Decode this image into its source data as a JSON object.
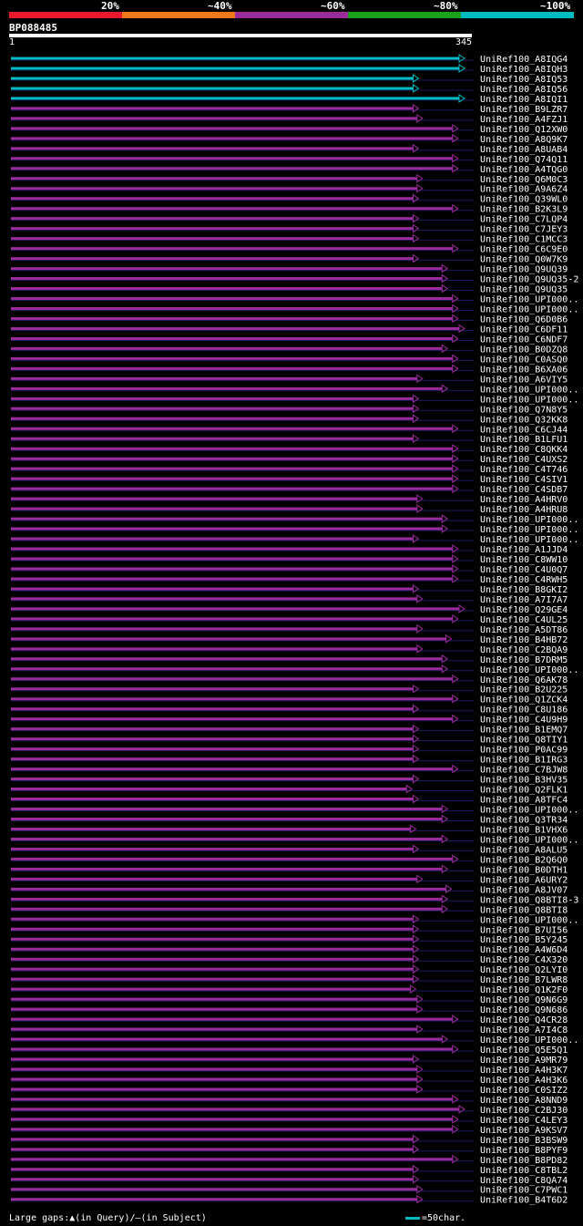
{
  "legend": {
    "labels": [
      "20%",
      "~40%",
      "~60%",
      "~80%",
      "~100%"
    ],
    "colors": [
      "#e8192c",
      "#f07818",
      "#9b2a9b",
      "#1aa01a",
      "#00bcc0"
    ]
  },
  "query": {
    "name": "BP088485",
    "start": "1",
    "end": "345"
  },
  "hits": [
    {
      "name": "UniRef100_A8IQG4",
      "end": 345,
      "color": "#00bcc0"
    },
    {
      "name": "UniRef100_A8IQH3",
      "end": 345,
      "color": "#00bcc0"
    },
    {
      "name": "UniRef100_A8IQ53",
      "end": 310,
      "color": "#00bcc0"
    },
    {
      "name": "UniRef100_A8IQ56",
      "end": 310,
      "color": "#00bcc0"
    },
    {
      "name": "UniRef100_A8IQI1",
      "end": 345,
      "color": "#00bcc0"
    },
    {
      "name": "UniRef100_B9LZR7",
      "end": 310,
      "color": "#9b2a9b"
    },
    {
      "name": "UniRef100_A4FZJ1",
      "end": 313,
      "color": "#9b2a9b"
    },
    {
      "name": "UniRef100_Q12XW0",
      "end": 340,
      "color": "#9b2a9b"
    },
    {
      "name": "UniRef100_A8Q9K7",
      "end": 340,
      "color": "#9b2a9b"
    },
    {
      "name": "UniRef100_A8UAB4",
      "end": 310,
      "color": "#9b2a9b"
    },
    {
      "name": "UniRef100_Q74Q11",
      "end": 340,
      "color": "#9b2a9b"
    },
    {
      "name": "UniRef100_A4TQG0",
      "end": 340,
      "color": "#9b2a9b"
    },
    {
      "name": "UniRef100_Q6M0C3",
      "end": 313,
      "color": "#9b2a9b"
    },
    {
      "name": "UniRef100_A9A6Z4",
      "end": 313,
      "color": "#9b2a9b"
    },
    {
      "name": "UniRef100_Q39WL0",
      "end": 310,
      "color": "#9b2a9b"
    },
    {
      "name": "UniRef100_B2K3L9",
      "end": 340,
      "color": "#9b2a9b"
    },
    {
      "name": "UniRef100_C7LQP4",
      "end": 310,
      "color": "#9b2a9b"
    },
    {
      "name": "UniRef100_C7JEY3",
      "end": 310,
      "color": "#9b2a9b"
    },
    {
      "name": "UniRef100_C1MCC3",
      "end": 310,
      "color": "#9b2a9b"
    },
    {
      "name": "UniRef100_C6C9E0",
      "end": 340,
      "color": "#9b2a9b"
    },
    {
      "name": "UniRef100_Q0W7K9",
      "end": 310,
      "color": "#9b2a9b"
    },
    {
      "name": "UniRef100_Q9UQ39",
      "end": 332,
      "color": "#9b2a9b"
    },
    {
      "name": "UniRef100_Q9UQ35-2",
      "end": 332,
      "color": "#9b2a9b"
    },
    {
      "name": "UniRef100_Q9UQ35",
      "end": 332,
      "color": "#9b2a9b"
    },
    {
      "name": "UniRef100_UPI000..",
      "end": 340,
      "color": "#9b2a9b"
    },
    {
      "name": "UniRef100_UPI000..",
      "end": 340,
      "color": "#9b2a9b"
    },
    {
      "name": "UniRef100_Q6D0B6",
      "end": 340,
      "color": "#9b2a9b"
    },
    {
      "name": "UniRef100_C6DF11",
      "end": 345,
      "color": "#9b2a9b"
    },
    {
      "name": "UniRef100_C6NDF7",
      "end": 340,
      "color": "#9b2a9b"
    },
    {
      "name": "UniRef100_B0DZQ8",
      "end": 332,
      "color": "#9b2a9b"
    },
    {
      "name": "UniRef100_C0ASQ0",
      "end": 340,
      "color": "#9b2a9b"
    },
    {
      "name": "UniRef100_B6XA06",
      "end": 340,
      "color": "#9b2a9b"
    },
    {
      "name": "UniRef100_A6VIY5",
      "end": 313,
      "color": "#9b2a9b"
    },
    {
      "name": "UniRef100_UPI000..",
      "end": 332,
      "color": "#9b2a9b"
    },
    {
      "name": "UniRef100_UPI000..",
      "end": 310,
      "color": "#9b2a9b"
    },
    {
      "name": "UniRef100_Q7N8Y5",
      "end": 310,
      "color": "#9b2a9b"
    },
    {
      "name": "UniRef100_Q32KK8",
      "end": 310,
      "color": "#9b2a9b"
    },
    {
      "name": "UniRef100_C6CJ44",
      "end": 340,
      "color": "#9b2a9b"
    },
    {
      "name": "UniRef100_B1LFU1",
      "end": 310,
      "color": "#9b2a9b"
    },
    {
      "name": "UniRef100_C8QKK4",
      "end": 340,
      "color": "#9b2a9b"
    },
    {
      "name": "UniRef100_C4UXS2",
      "end": 340,
      "color": "#9b2a9b"
    },
    {
      "name": "UniRef100_C4T746",
      "end": 340,
      "color": "#9b2a9b"
    },
    {
      "name": "UniRef100_C4SIV1",
      "end": 340,
      "color": "#9b2a9b"
    },
    {
      "name": "UniRef100_C4SDB7",
      "end": 340,
      "color": "#9b2a9b"
    },
    {
      "name": "UniRef100_A4HRV0",
      "end": 313,
      "color": "#9b2a9b"
    },
    {
      "name": "UniRef100_A4HRU8",
      "end": 313,
      "color": "#9b2a9b"
    },
    {
      "name": "UniRef100_UPI000..",
      "end": 332,
      "color": "#9b2a9b"
    },
    {
      "name": "UniRef100_UPI000..",
      "end": 332,
      "color": "#9b2a9b"
    },
    {
      "name": "UniRef100_UPI000..",
      "end": 310,
      "color": "#9b2a9b"
    },
    {
      "name": "UniRef100_A1JJD4",
      "end": 340,
      "color": "#9b2a9b"
    },
    {
      "name": "UniRef100_C8WW10",
      "end": 340,
      "color": "#9b2a9b"
    },
    {
      "name": "UniRef100_C4U0Q7",
      "end": 340,
      "color": "#9b2a9b"
    },
    {
      "name": "UniRef100_C4RWH5",
      "end": 340,
      "color": "#9b2a9b"
    },
    {
      "name": "UniRef100_B8GKI2",
      "end": 310,
      "color": "#9b2a9b"
    },
    {
      "name": "UniRef100_A7I7A7",
      "end": 313,
      "color": "#9b2a9b"
    },
    {
      "name": "UniRef100_Q29GE4",
      "end": 345,
      "color": "#9b2a9b"
    },
    {
      "name": "UniRef100_C4UL25",
      "end": 340,
      "color": "#9b2a9b"
    },
    {
      "name": "UniRef100_A5DT86",
      "end": 313,
      "color": "#9b2a9b"
    },
    {
      "name": "UniRef100_B4HB72",
      "end": 335,
      "color": "#9b2a9b"
    },
    {
      "name": "UniRef100_C2BQA9",
      "end": 313,
      "color": "#9b2a9b"
    },
    {
      "name": "UniRef100_B7DRM5",
      "end": 332,
      "color": "#9b2a9b"
    },
    {
      "name": "UniRef100_UPI000..",
      "end": 332,
      "color": "#9b2a9b"
    },
    {
      "name": "UniRef100_Q6AK78",
      "end": 340,
      "color": "#9b2a9b"
    },
    {
      "name": "UniRef100_B2U225",
      "end": 310,
      "color": "#9b2a9b"
    },
    {
      "name": "UniRef100_Q1ZCK4",
      "end": 340,
      "color": "#9b2a9b"
    },
    {
      "name": "UniRef100_C8U186",
      "end": 310,
      "color": "#9b2a9b"
    },
    {
      "name": "UniRef100_C4U9H9",
      "end": 340,
      "color": "#9b2a9b"
    },
    {
      "name": "UniRef100_B1EMQ7",
      "end": 310,
      "color": "#9b2a9b"
    },
    {
      "name": "UniRef100_Q8TIY1",
      "end": 310,
      "color": "#9b2a9b"
    },
    {
      "name": "UniRef100_P0AC99",
      "end": 310,
      "color": "#9b2a9b"
    },
    {
      "name": "UniRef100_B1IRG3",
      "end": 310,
      "color": "#9b2a9b"
    },
    {
      "name": "UniRef100_C7BJW8",
      "end": 340,
      "color": "#9b2a9b"
    },
    {
      "name": "UniRef100_B3HV35",
      "end": 310,
      "color": "#9b2a9b"
    },
    {
      "name": "UniRef100_Q2FLK1",
      "end": 305,
      "color": "#9b2a9b"
    },
    {
      "name": "UniRef100_A8TFC4",
      "end": 310,
      "color": "#9b2a9b"
    },
    {
      "name": "UniRef100_UPI000..",
      "end": 332,
      "color": "#9b2a9b"
    },
    {
      "name": "UniRef100_Q3TR34",
      "end": 332,
      "color": "#9b2a9b"
    },
    {
      "name": "UniRef100_B1VHX6",
      "end": 308,
      "color": "#9b2a9b"
    },
    {
      "name": "UniRef100_UPI000..",
      "end": 332,
      "color": "#9b2a9b"
    },
    {
      "name": "UniRef100_A8ALU5",
      "end": 310,
      "color": "#9b2a9b"
    },
    {
      "name": "UniRef100_B2Q6Q0",
      "end": 340,
      "color": "#9b2a9b"
    },
    {
      "name": "UniRef100_B0DTH1",
      "end": 332,
      "color": "#9b2a9b"
    },
    {
      "name": "UniRef100_A6URY2",
      "end": 313,
      "color": "#9b2a9b"
    },
    {
      "name": "UniRef100_A8JV07",
      "end": 335,
      "color": "#9b2a9b"
    },
    {
      "name": "UniRef100_Q8BTI8-3",
      "end": 332,
      "color": "#9b2a9b"
    },
    {
      "name": "UniRef100_Q8BTI8",
      "end": 332,
      "color": "#9b2a9b"
    },
    {
      "name": "UniRef100_UPI000..",
      "end": 310,
      "color": "#9b2a9b"
    },
    {
      "name": "UniRef100_B7UI56",
      "end": 310,
      "color": "#9b2a9b"
    },
    {
      "name": "UniRef100_B5Y245",
      "end": 310,
      "color": "#9b2a9b"
    },
    {
      "name": "UniRef100_A4W6D4",
      "end": 310,
      "color": "#9b2a9b"
    },
    {
      "name": "UniRef100_C4X320",
      "end": 310,
      "color": "#9b2a9b"
    },
    {
      "name": "UniRef100_Q2LYI0",
      "end": 310,
      "color": "#9b2a9b"
    },
    {
      "name": "UniRef100_B7LWR8",
      "end": 310,
      "color": "#9b2a9b"
    },
    {
      "name": "UniRef100_Q1K2F0",
      "end": 308,
      "color": "#9b2a9b"
    },
    {
      "name": "UniRef100_Q9N6G9",
      "end": 313,
      "color": "#9b2a9b"
    },
    {
      "name": "UniRef100_Q9N686",
      "end": 313,
      "color": "#9b2a9b"
    },
    {
      "name": "UniRef100_Q4CR28",
      "end": 340,
      "color": "#9b2a9b"
    },
    {
      "name": "UniRef100_A7I4C8",
      "end": 313,
      "color": "#9b2a9b"
    },
    {
      "name": "UniRef100_UPI000..",
      "end": 332,
      "color": "#9b2a9b"
    },
    {
      "name": "UniRef100_Q5E5Q1",
      "end": 340,
      "color": "#9b2a9b"
    },
    {
      "name": "UniRef100_A9MR79",
      "end": 310,
      "color": "#9b2a9b"
    },
    {
      "name": "UniRef100_A4H3K7",
      "end": 313,
      "color": "#9b2a9b"
    },
    {
      "name": "UniRef100_A4H3K6",
      "end": 313,
      "color": "#9b2a9b"
    },
    {
      "name": "UniRef100_C0SIZ2",
      "end": 313,
      "color": "#9b2a9b"
    },
    {
      "name": "UniRef100_A8NND9",
      "end": 340,
      "color": "#9b2a9b"
    },
    {
      "name": "UniRef100_C2BJ30",
      "end": 345,
      "color": "#9b2a9b"
    },
    {
      "name": "UniRef100_C4LEY3",
      "end": 340,
      "color": "#9b2a9b"
    },
    {
      "name": "UniRef100_A9KSV7",
      "end": 340,
      "color": "#9b2a9b"
    },
    {
      "name": "UniRef100_B3BSW9",
      "end": 310,
      "color": "#9b2a9b"
    },
    {
      "name": "UniRef100_B8PYF9",
      "end": 310,
      "color": "#9b2a9b"
    },
    {
      "name": "UniRef100_B8PD82",
      "end": 340,
      "color": "#9b2a9b"
    },
    {
      "name": "UniRef100_C8TBL2",
      "end": 310,
      "color": "#9b2a9b"
    },
    {
      "name": "UniRef100_C8QA74",
      "end": 310,
      "color": "#9b2a9b"
    },
    {
      "name": "UniRef100_C7PWC1",
      "end": 313,
      "color": "#9b2a9b"
    },
    {
      "name": "UniRef100_B4T6D2",
      "end": 313,
      "color": "#9b2a9b"
    }
  ],
  "footer": {
    "large_gaps": "Large gaps:",
    "in_query": "(in Query)/",
    "in_subject": "(in Subject)",
    "scale_text": "=50char."
  }
}
